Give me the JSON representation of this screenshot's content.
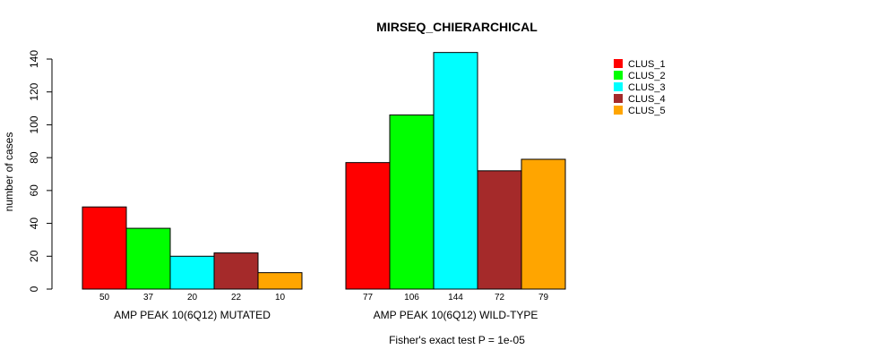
{
  "chart_data": {
    "type": "bar",
    "title": "MIRSEQ_CHIERARCHICAL",
    "ylabel": "number of cases",
    "xlabel": "",
    "footnote": "Fisher's exact test P = 1e-05",
    "ylim": [
      0,
      140
    ],
    "yticks": [
      0,
      20,
      40,
      60,
      80,
      100,
      120,
      140
    ],
    "groups": [
      "AMP PEAK 10(6Q12) MUTATED",
      "AMP PEAK 10(6Q12) WILD-TYPE"
    ],
    "series": [
      {
        "name": "CLUS_1",
        "color": "#ff0000",
        "values": [
          50,
          77
        ]
      },
      {
        "name": "CLUS_2",
        "color": "#00ff00",
        "values": [
          37,
          106
        ]
      },
      {
        "name": "CLUS_3",
        "color": "#00ffff",
        "values": [
          20,
          144
        ]
      },
      {
        "name": "CLUS_4",
        "color": "#a52a2a",
        "values": [
          22,
          72
        ]
      },
      {
        "name": "CLUS_5",
        "color": "#ffa500",
        "values": [
          10,
          79
        ]
      }
    ],
    "legend_position": "top-right"
  }
}
